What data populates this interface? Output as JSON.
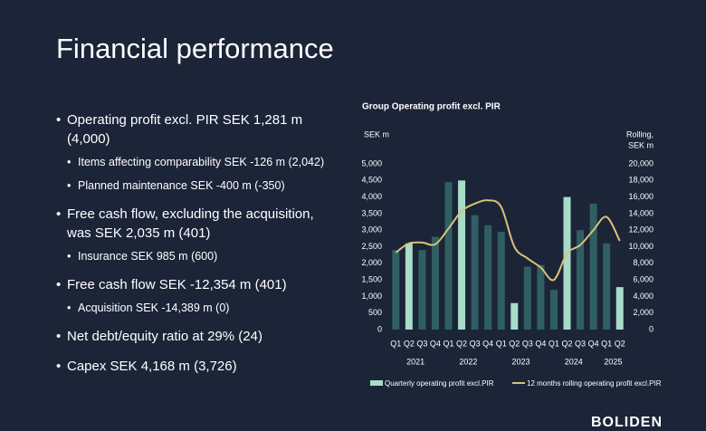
{
  "title": "Financial performance",
  "bullets": [
    {
      "text": "Operating profit excl. PIR SEK 1,281 m (4,000)",
      "sub": [
        "Items affecting comparability SEK -126 m (2,042)",
        "Planned maintenance SEK -400 m (-350)"
      ]
    },
    {
      "text": "Free cash flow, excluding the acquisition, was SEK 2,035 m (401)",
      "sub": [
        "Insurance SEK 985 m (600)"
      ]
    },
    {
      "text": "Free cash flow SEK -12,354 m (401)",
      "sub": [
        "Acquisition SEK -14,389 m (0)"
      ]
    },
    {
      "text": "Net debt/equity ratio at 29% (24)",
      "sub": []
    },
    {
      "text": "Capex SEK 4,168 m (3,726)",
      "sub": []
    }
  ],
  "logo": "BOLIDEN",
  "chart_data": {
    "type": "bar",
    "title": "Group Operating profit excl. PIR",
    "ylabel": "SEK m",
    "y2label": [
      "Rolling,",
      "SEK m"
    ],
    "categories": [
      "Q1",
      "Q2",
      "Q3",
      "Q4",
      "Q1",
      "Q2",
      "Q3",
      "Q4",
      "Q1",
      "Q2",
      "Q3",
      "Q4",
      "Q1",
      "Q2",
      "Q3",
      "Q4",
      "Q1",
      "Q2"
    ],
    "years": [
      "2021",
      "2022",
      "2023",
      "2024",
      "2025"
    ],
    "series": [
      {
        "name": "Quarterly operating profit excl.PIR",
        "color": "#a8dcc8",
        "colors": [
          "#2f5f63",
          "#a8dcc8",
          "#2f5f63",
          "#2f5f63",
          "#2f5f63",
          "#a8dcc8",
          "#2f5f63",
          "#2f5f63",
          "#2f5f63",
          "#a8dcc8",
          "#2f5f63",
          "#2f5f63",
          "#2f5f63",
          "#a8dcc8",
          "#2f5f63",
          "#2f5f63",
          "#2f5f63",
          "#a8dcc8"
        ],
        "values": [
          2400,
          2600,
          2400,
          2800,
          4450,
          4500,
          3450,
          3150,
          2950,
          800,
          1900,
          1950,
          1200,
          4000,
          3000,
          3800,
          2600,
          1281
        ]
      },
      {
        "name": "12 months rolling operating profit excl.PIR",
        "color": "#d9c27a",
        "axis": "y2",
        "type": "line",
        "values": [
          9300,
          10400,
          10500,
          10300,
          12200,
          14300,
          15200,
          15600,
          14800,
          10000,
          8600,
          7500,
          6000,
          9200,
          10200,
          12000,
          13600,
          10700
        ]
      }
    ],
    "ylim": [
      0,
      5000
    ],
    "yticks": [
      0,
      500,
      {
        "value": 1000,
        "label": "1,000"
      },
      {
        "value": 1500,
        "label": "1,500"
      },
      {
        "value": 2000,
        "label": "2,000"
      },
      {
        "value": 2500,
        "label": "2,500"
      },
      {
        "value": 3000,
        "label": "3,000"
      },
      {
        "value": 3500,
        "label": "3,500"
      },
      {
        "value": 4000,
        "label": "4,000"
      },
      {
        "value": 4500,
        "label": "4,500"
      },
      {
        "value": 5000,
        "label": "5,000"
      }
    ],
    "y2lim": [
      0,
      20000
    ],
    "y2ticks": [
      0,
      {
        "value": 2000,
        "label": "2,000"
      },
      {
        "value": 4000,
        "label": "4,000"
      },
      {
        "value": 6000,
        "label": "6,000"
      },
      {
        "value": 8000,
        "label": "8,000"
      },
      {
        "value": 10000,
        "label": "10,000"
      },
      {
        "value": 12000,
        "label": "12,000"
      },
      {
        "value": 14000,
        "label": "14,000"
      },
      {
        "value": 16000,
        "label": "16,000"
      },
      {
        "value": 18000,
        "label": "18,000"
      },
      {
        "value": 20000,
        "label": "20,000"
      }
    ]
  }
}
